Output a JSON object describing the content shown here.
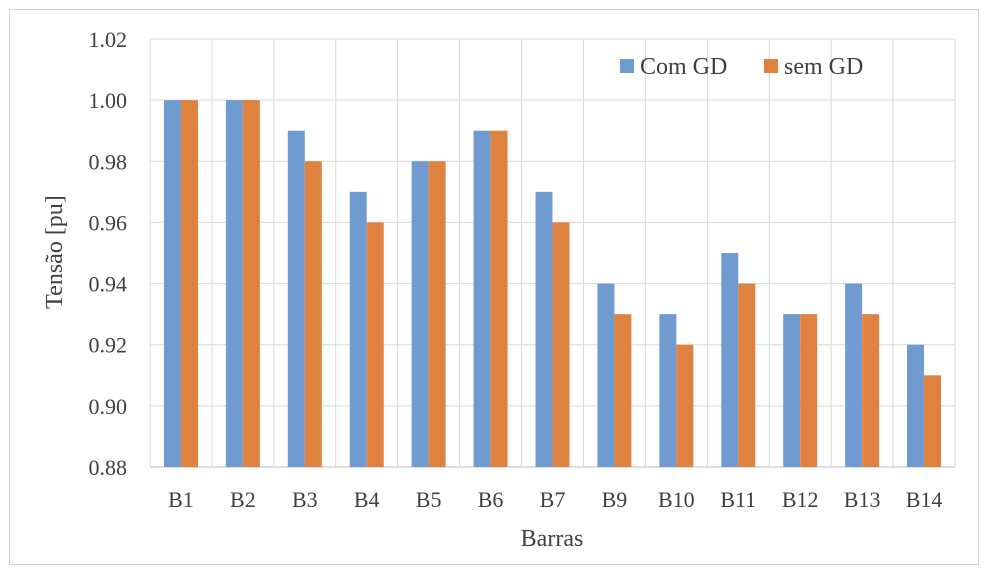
{
  "chart_data": {
    "type": "bar",
    "title": "",
    "xlabel": "Barras",
    "ylabel": "Tensão [pu]",
    "categories": [
      "B1",
      "B2",
      "B3",
      "B4",
      "B5",
      "B6",
      "B7",
      "B9",
      "B10",
      "B11",
      "B12",
      "B13",
      "B14"
    ],
    "series": [
      {
        "name": "Com GD",
        "color": "#6f9bd1",
        "values": [
          1.0,
          1.0,
          0.99,
          0.97,
          0.98,
          0.99,
          0.97,
          0.94,
          0.93,
          0.95,
          0.93,
          0.94,
          0.92
        ]
      },
      {
        "name": "sem GD",
        "color": "#e0823f",
        "values": [
          1.0,
          1.0,
          0.98,
          0.96,
          0.98,
          0.99,
          0.96,
          0.93,
          0.92,
          0.94,
          0.93,
          0.93,
          0.91
        ]
      }
    ],
    "ylim": [
      0.88,
      1.02
    ],
    "yticks": [
      "0.88",
      "0.90",
      "0.92",
      "0.94",
      "0.96",
      "0.98",
      "1.00",
      "1.02"
    ],
    "grid": true,
    "legend_position": "top-right"
  }
}
